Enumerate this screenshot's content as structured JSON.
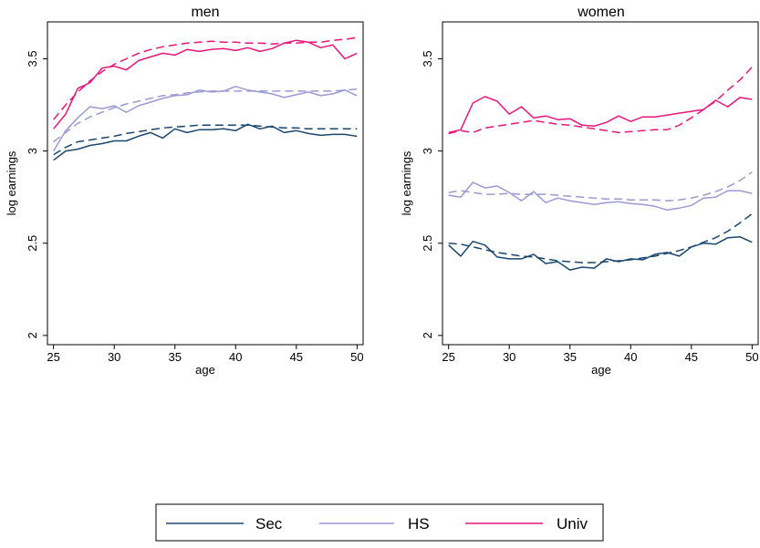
{
  "chart_data": [
    {
      "type": "line",
      "title": "men",
      "xlabel": "age",
      "ylabel": "log earnings",
      "xlim": [
        24.5,
        50.5
      ],
      "ylim": [
        1.95,
        3.7
      ],
      "xticks": [
        25,
        30,
        35,
        40,
        45,
        50
      ],
      "yticks": [
        2,
        2.5,
        3,
        3.5
      ],
      "x": [
        25,
        26,
        27,
        28,
        29,
        30,
        31,
        32,
        33,
        34,
        35,
        36,
        37,
        38,
        39,
        40,
        41,
        42,
        43,
        44,
        45,
        46,
        47,
        48,
        49,
        50
      ],
      "series": [
        {
          "group": "Sec",
          "style": "solid",
          "values": [
            2.95,
            3.0,
            3.01,
            3.03,
            3.04,
            3.055,
            3.055,
            3.08,
            3.1,
            3.07,
            3.12,
            3.1,
            3.115,
            3.115,
            3.12,
            3.11,
            3.145,
            3.12,
            3.135,
            3.1,
            3.11,
            3.095,
            3.085,
            3.09,
            3.09,
            3.08
          ]
        },
        {
          "group": "Sec",
          "style": "dashed",
          "values": [
            2.98,
            3.02,
            3.05,
            3.06,
            3.07,
            3.08,
            3.095,
            3.105,
            3.115,
            3.125,
            3.13,
            3.135,
            3.14,
            3.14,
            3.14,
            3.14,
            3.14,
            3.135,
            3.13,
            3.125,
            3.125,
            3.12,
            3.12,
            3.12,
            3.12,
            3.12
          ]
        },
        {
          "group": "HS",
          "style": "solid",
          "values": [
            3.0,
            3.11,
            3.18,
            3.24,
            3.23,
            3.245,
            3.21,
            3.245,
            3.265,
            3.285,
            3.3,
            3.305,
            3.33,
            3.32,
            3.325,
            3.35,
            3.33,
            3.32,
            3.31,
            3.29,
            3.305,
            3.32,
            3.3,
            3.31,
            3.33,
            3.3
          ]
        },
        {
          "group": "HS",
          "style": "dashed",
          "values": [
            3.05,
            3.1,
            3.15,
            3.185,
            3.21,
            3.235,
            3.255,
            3.27,
            3.285,
            3.3,
            3.305,
            3.315,
            3.32,
            3.325,
            3.325,
            3.325,
            3.325,
            3.325,
            3.325,
            3.325,
            3.325,
            3.325,
            3.325,
            3.325,
            3.33,
            3.335
          ]
        },
        {
          "group": "Univ",
          "style": "solid",
          "values": [
            3.12,
            3.2,
            3.34,
            3.37,
            3.45,
            3.46,
            3.44,
            3.49,
            3.51,
            3.53,
            3.52,
            3.55,
            3.54,
            3.55,
            3.555,
            3.545,
            3.56,
            3.54,
            3.555,
            3.585,
            3.6,
            3.59,
            3.56,
            3.575,
            3.5,
            3.53
          ]
        },
        {
          "group": "Univ",
          "style": "dashed",
          "values": [
            3.17,
            3.25,
            3.32,
            3.38,
            3.43,
            3.47,
            3.5,
            3.53,
            3.55,
            3.565,
            3.575,
            3.585,
            3.59,
            3.595,
            3.59,
            3.59,
            3.585,
            3.585,
            3.58,
            3.585,
            3.585,
            3.59,
            3.59,
            3.6,
            3.605,
            3.615
          ]
        }
      ]
    },
    {
      "type": "line",
      "title": "women",
      "xlabel": "age",
      "ylabel": "log earnings",
      "xlim": [
        24.5,
        50.5
      ],
      "ylim": [
        1.95,
        3.7
      ],
      "xticks": [
        25,
        30,
        35,
        40,
        45,
        50
      ],
      "yticks": [
        2,
        2.5,
        3,
        3.5
      ],
      "x": [
        25,
        26,
        27,
        28,
        29,
        30,
        31,
        32,
        33,
        34,
        35,
        36,
        37,
        38,
        39,
        40,
        41,
        42,
        43,
        44,
        45,
        46,
        47,
        48,
        49,
        50
      ],
      "series": [
        {
          "group": "Sec",
          "style": "solid",
          "values": [
            2.49,
            2.43,
            2.51,
            2.49,
            2.425,
            2.415,
            2.415,
            2.44,
            2.39,
            2.4,
            2.355,
            2.37,
            2.365,
            2.415,
            2.4,
            2.415,
            2.41,
            2.44,
            2.45,
            2.43,
            2.48,
            2.5,
            2.495,
            2.53,
            2.535,
            2.505
          ]
        },
        {
          "group": "Sec",
          "style": "dashed",
          "values": [
            2.5,
            2.495,
            2.48,
            2.465,
            2.45,
            2.44,
            2.43,
            2.425,
            2.415,
            2.405,
            2.4,
            2.395,
            2.395,
            2.4,
            2.405,
            2.41,
            2.42,
            2.43,
            2.445,
            2.46,
            2.48,
            2.505,
            2.53,
            2.565,
            2.61,
            2.66
          ]
        },
        {
          "group": "HS",
          "style": "solid",
          "values": [
            2.76,
            2.75,
            2.83,
            2.8,
            2.81,
            2.775,
            2.73,
            2.78,
            2.72,
            2.745,
            2.73,
            2.72,
            2.71,
            2.72,
            2.725,
            2.715,
            2.71,
            2.7,
            2.68,
            2.69,
            2.705,
            2.745,
            2.75,
            2.785,
            2.785,
            2.77
          ]
        },
        {
          "group": "HS",
          "style": "dashed",
          "values": [
            2.775,
            2.785,
            2.775,
            2.765,
            2.765,
            2.77,
            2.765,
            2.765,
            2.765,
            2.76,
            2.755,
            2.75,
            2.745,
            2.74,
            2.74,
            2.735,
            2.735,
            2.735,
            2.73,
            2.735,
            2.745,
            2.76,
            2.78,
            2.805,
            2.84,
            2.885
          ]
        },
        {
          "group": "Univ",
          "style": "solid",
          "values": [
            3.1,
            3.115,
            3.26,
            3.295,
            3.27,
            3.2,
            3.24,
            3.18,
            3.19,
            3.17,
            3.175,
            3.14,
            3.135,
            3.155,
            3.19,
            3.16,
            3.185,
            3.185,
            3.195,
            3.205,
            3.215,
            3.225,
            3.275,
            3.24,
            3.29,
            3.28
          ]
        },
        {
          "group": "Univ",
          "style": "dashed",
          "values": [
            3.095,
            3.11,
            3.1,
            3.125,
            3.135,
            3.145,
            3.155,
            3.165,
            3.155,
            3.145,
            3.14,
            3.13,
            3.12,
            3.11,
            3.1,
            3.105,
            3.11,
            3.115,
            3.115,
            3.14,
            3.18,
            3.225,
            3.27,
            3.33,
            3.385,
            3.455
          ]
        }
      ]
    }
  ],
  "legend": {
    "placement": "bottom",
    "items": [
      {
        "label": "Sec",
        "color": "#1a476f"
      },
      {
        "label": "HS",
        "color": "#9a9ad4"
      },
      {
        "label": "Univ",
        "color": "#e8167c"
      }
    ]
  },
  "colors": {
    "Sec": "#1a476f",
    "HS": "#9a9ad4",
    "Univ": "#e8167c"
  }
}
